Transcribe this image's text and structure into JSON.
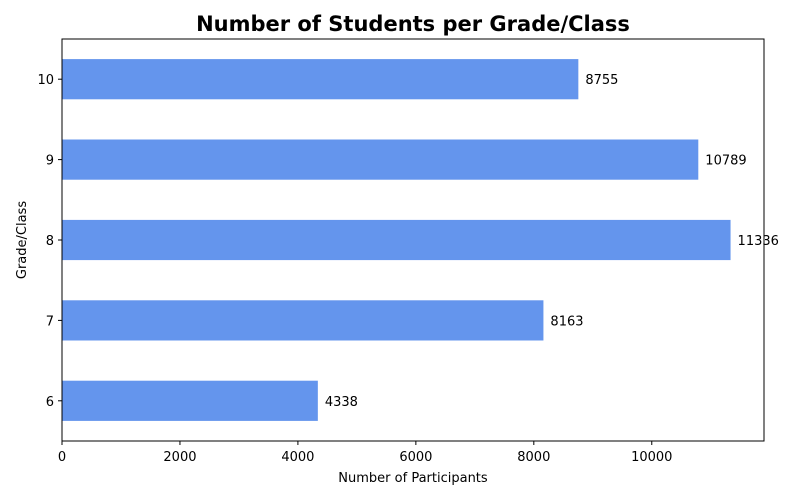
{
  "chart_data": {
    "type": "bar",
    "orientation": "horizontal",
    "title": "Number of Students per Grade/Class",
    "xlabel": "Number of Participants",
    "ylabel": "Grade/Class",
    "categories": [
      "6",
      "7",
      "8",
      "9",
      "10"
    ],
    "values": [
      4338,
      8163,
      11336,
      10789,
      8755
    ],
    "xlim": [
      0,
      11903
    ],
    "xticks": [
      0,
      2000,
      4000,
      6000,
      8000,
      10000
    ],
    "grid": false,
    "legend": "none",
    "bar_color": "#6495ED"
  }
}
